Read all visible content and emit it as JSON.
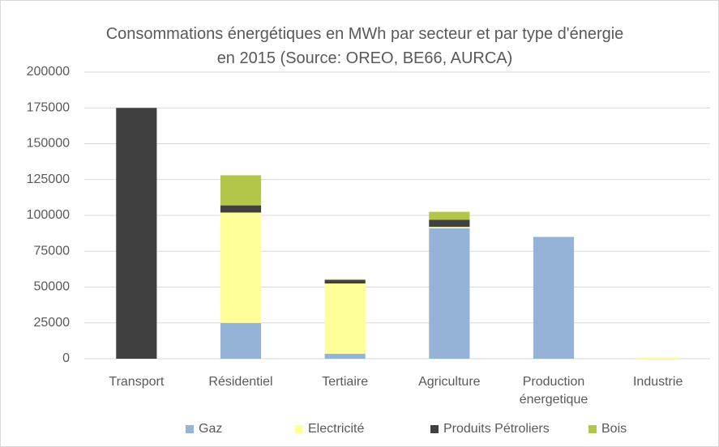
{
  "chart_data": {
    "type": "stacked_bar",
    "title": "Consommations énergétiques en MWh par secteur et par type d'énergie en 2015 (Source: OREO, BE66,  AURCA)",
    "categories": [
      "Transport",
      "Résidentiel",
      "Tertiaire",
      "Agriculture",
      "Production énergetique",
      "Industrie"
    ],
    "series": [
      {
        "name": "Gaz",
        "color": "#95b3d7",
        "values": [
          0,
          25000,
          3500,
          91000,
          85000,
          0
        ]
      },
      {
        "name": "Electricité",
        "color": "#ffff99",
        "values": [
          0,
          77000,
          49000,
          1000,
          0,
          1000
        ]
      },
      {
        "name": "Produits Pétroliers",
        "color": "#404040",
        "values": [
          175000,
          5000,
          2500,
          5000,
          0,
          0
        ]
      },
      {
        "name": "Bois",
        "color": "#b3c64a",
        "values": [
          0,
          21000,
          500,
          5500,
          0,
          0
        ]
      }
    ],
    "ylim": [
      0,
      200000
    ],
    "yticks": [
      0,
      25000,
      50000,
      75000,
      100000,
      125000,
      150000,
      175000,
      200000
    ],
    "grid": true,
    "legend": "bottom"
  }
}
